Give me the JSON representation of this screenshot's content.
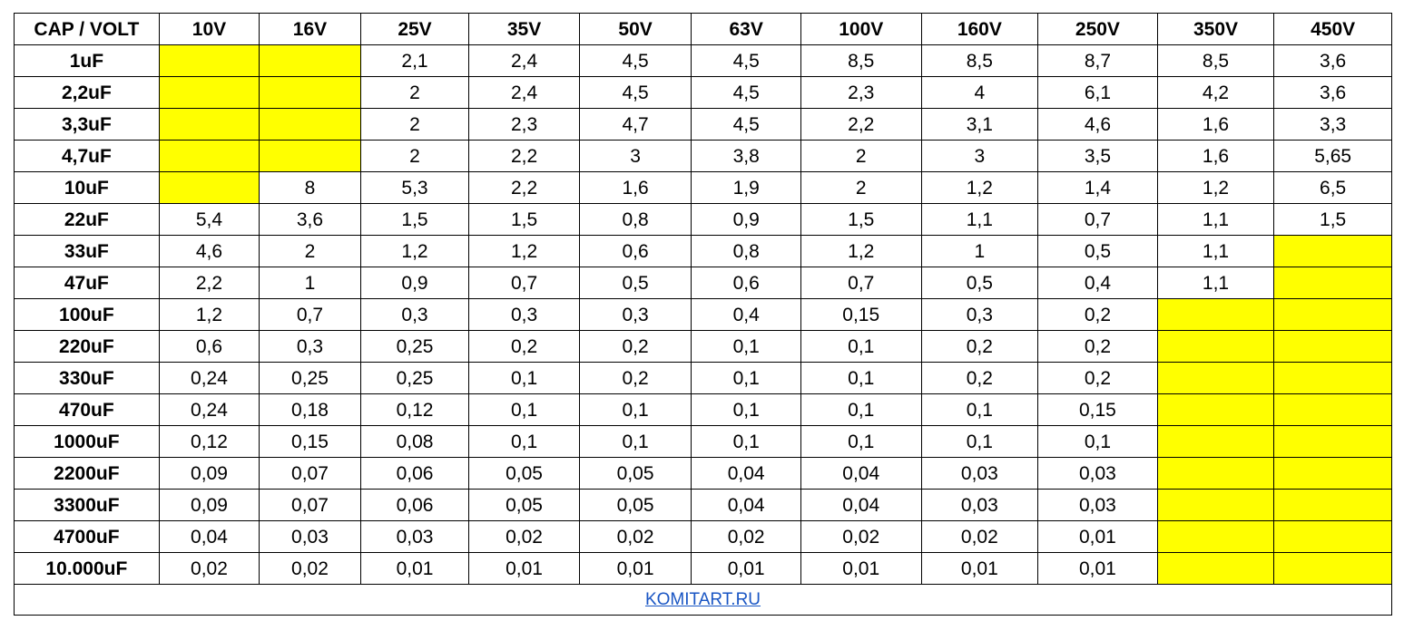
{
  "table": {
    "corner_label": "CAP / VOLT",
    "columns": [
      "10V",
      "16V",
      "25V",
      "35V",
      "50V",
      "63V",
      "100V",
      "160V",
      "250V",
      "350V",
      "450V"
    ],
    "highlight_color": "#ffff00",
    "rows": [
      {
        "cap": "1uF",
        "values": [
          "",
          "",
          "2,1",
          "2,4",
          "4,5",
          "4,5",
          "8,5",
          "8,5",
          "8,7",
          "8,5",
          "3,6"
        ],
        "unavailable": [
          0,
          1
        ]
      },
      {
        "cap": "2,2uF",
        "values": [
          "",
          "",
          "2",
          "2,4",
          "4,5",
          "4,5",
          "2,3",
          "4",
          "6,1",
          "4,2",
          "3,6"
        ],
        "unavailable": [
          0,
          1
        ]
      },
      {
        "cap": "3,3uF",
        "values": [
          "",
          "",
          "2",
          "2,3",
          "4,7",
          "4,5",
          "2,2",
          "3,1",
          "4,6",
          "1,6",
          "3,3"
        ],
        "unavailable": [
          0,
          1
        ]
      },
      {
        "cap": "4,7uF",
        "values": [
          "",
          "",
          "2",
          "2,2",
          "3",
          "3,8",
          "2",
          "3",
          "3,5",
          "1,6",
          "5,65"
        ],
        "unavailable": [
          0,
          1
        ]
      },
      {
        "cap": "10uF",
        "values": [
          "",
          "8",
          "5,3",
          "2,2",
          "1,6",
          "1,9",
          "2",
          "1,2",
          "1,4",
          "1,2",
          "6,5"
        ],
        "unavailable": [
          0
        ]
      },
      {
        "cap": "22uF",
        "values": [
          "5,4",
          "3,6",
          "1,5",
          "1,5",
          "0,8",
          "0,9",
          "1,5",
          "1,1",
          "0,7",
          "1,1",
          "1,5"
        ],
        "unavailable": []
      },
      {
        "cap": "33uF",
        "values": [
          "4,6",
          "2",
          "1,2",
          "1,2",
          "0,6",
          "0,8",
          "1,2",
          "1",
          "0,5",
          "1,1",
          ""
        ],
        "unavailable": [
          10
        ]
      },
      {
        "cap": "47uF",
        "values": [
          "2,2",
          "1",
          "0,9",
          "0,7",
          "0,5",
          "0,6",
          "0,7",
          "0,5",
          "0,4",
          "1,1",
          ""
        ],
        "unavailable": [
          10
        ]
      },
      {
        "cap": "100uF",
        "values": [
          "1,2",
          "0,7",
          "0,3",
          "0,3",
          "0,3",
          "0,4",
          "0,15",
          "0,3",
          "0,2",
          "",
          ""
        ],
        "unavailable": [
          9,
          10
        ]
      },
      {
        "cap": "220uF",
        "values": [
          "0,6",
          "0,3",
          "0,25",
          "0,2",
          "0,2",
          "0,1",
          "0,1",
          "0,2",
          "0,2",
          "",
          ""
        ],
        "unavailable": [
          9,
          10
        ]
      },
      {
        "cap": "330uF",
        "values": [
          "0,24",
          "0,25",
          "0,25",
          "0,1",
          "0,2",
          "0,1",
          "0,1",
          "0,2",
          "0,2",
          "",
          ""
        ],
        "unavailable": [
          9,
          10
        ]
      },
      {
        "cap": "470uF",
        "values": [
          "0,24",
          "0,18",
          "0,12",
          "0,1",
          "0,1",
          "0,1",
          "0,1",
          "0,1",
          "0,15",
          "",
          ""
        ],
        "unavailable": [
          9,
          10
        ]
      },
      {
        "cap": "1000uF",
        "values": [
          "0,12",
          "0,15",
          "0,08",
          "0,1",
          "0,1",
          "0,1",
          "0,1",
          "0,1",
          "0,1",
          "",
          ""
        ],
        "unavailable": [
          9,
          10
        ]
      },
      {
        "cap": "2200uF",
        "values": [
          "0,09",
          "0,07",
          "0,06",
          "0,05",
          "0,05",
          "0,04",
          "0,04",
          "0,03",
          "0,03",
          "",
          ""
        ],
        "unavailable": [
          9,
          10
        ]
      },
      {
        "cap": "3300uF",
        "values": [
          "0,09",
          "0,07",
          "0,06",
          "0,05",
          "0,05",
          "0,04",
          "0,04",
          "0,03",
          "0,03",
          "",
          ""
        ],
        "unavailable": [
          9,
          10
        ]
      },
      {
        "cap": "4700uF",
        "values": [
          "0,04",
          "0,03",
          "0,03",
          "0,02",
          "0,02",
          "0,02",
          "0,02",
          "0,02",
          "0,01",
          "",
          ""
        ],
        "unavailable": [
          9,
          10
        ]
      },
      {
        "cap": "10.000uF",
        "values": [
          "0,02",
          "0,02",
          "0,01",
          "0,01",
          "0,01",
          "0,01",
          "0,01",
          "0,01",
          "0,01",
          "",
          ""
        ],
        "unavailable": [
          9,
          10
        ]
      }
    ]
  },
  "footer": {
    "link_text": "KOMITART.RU"
  }
}
